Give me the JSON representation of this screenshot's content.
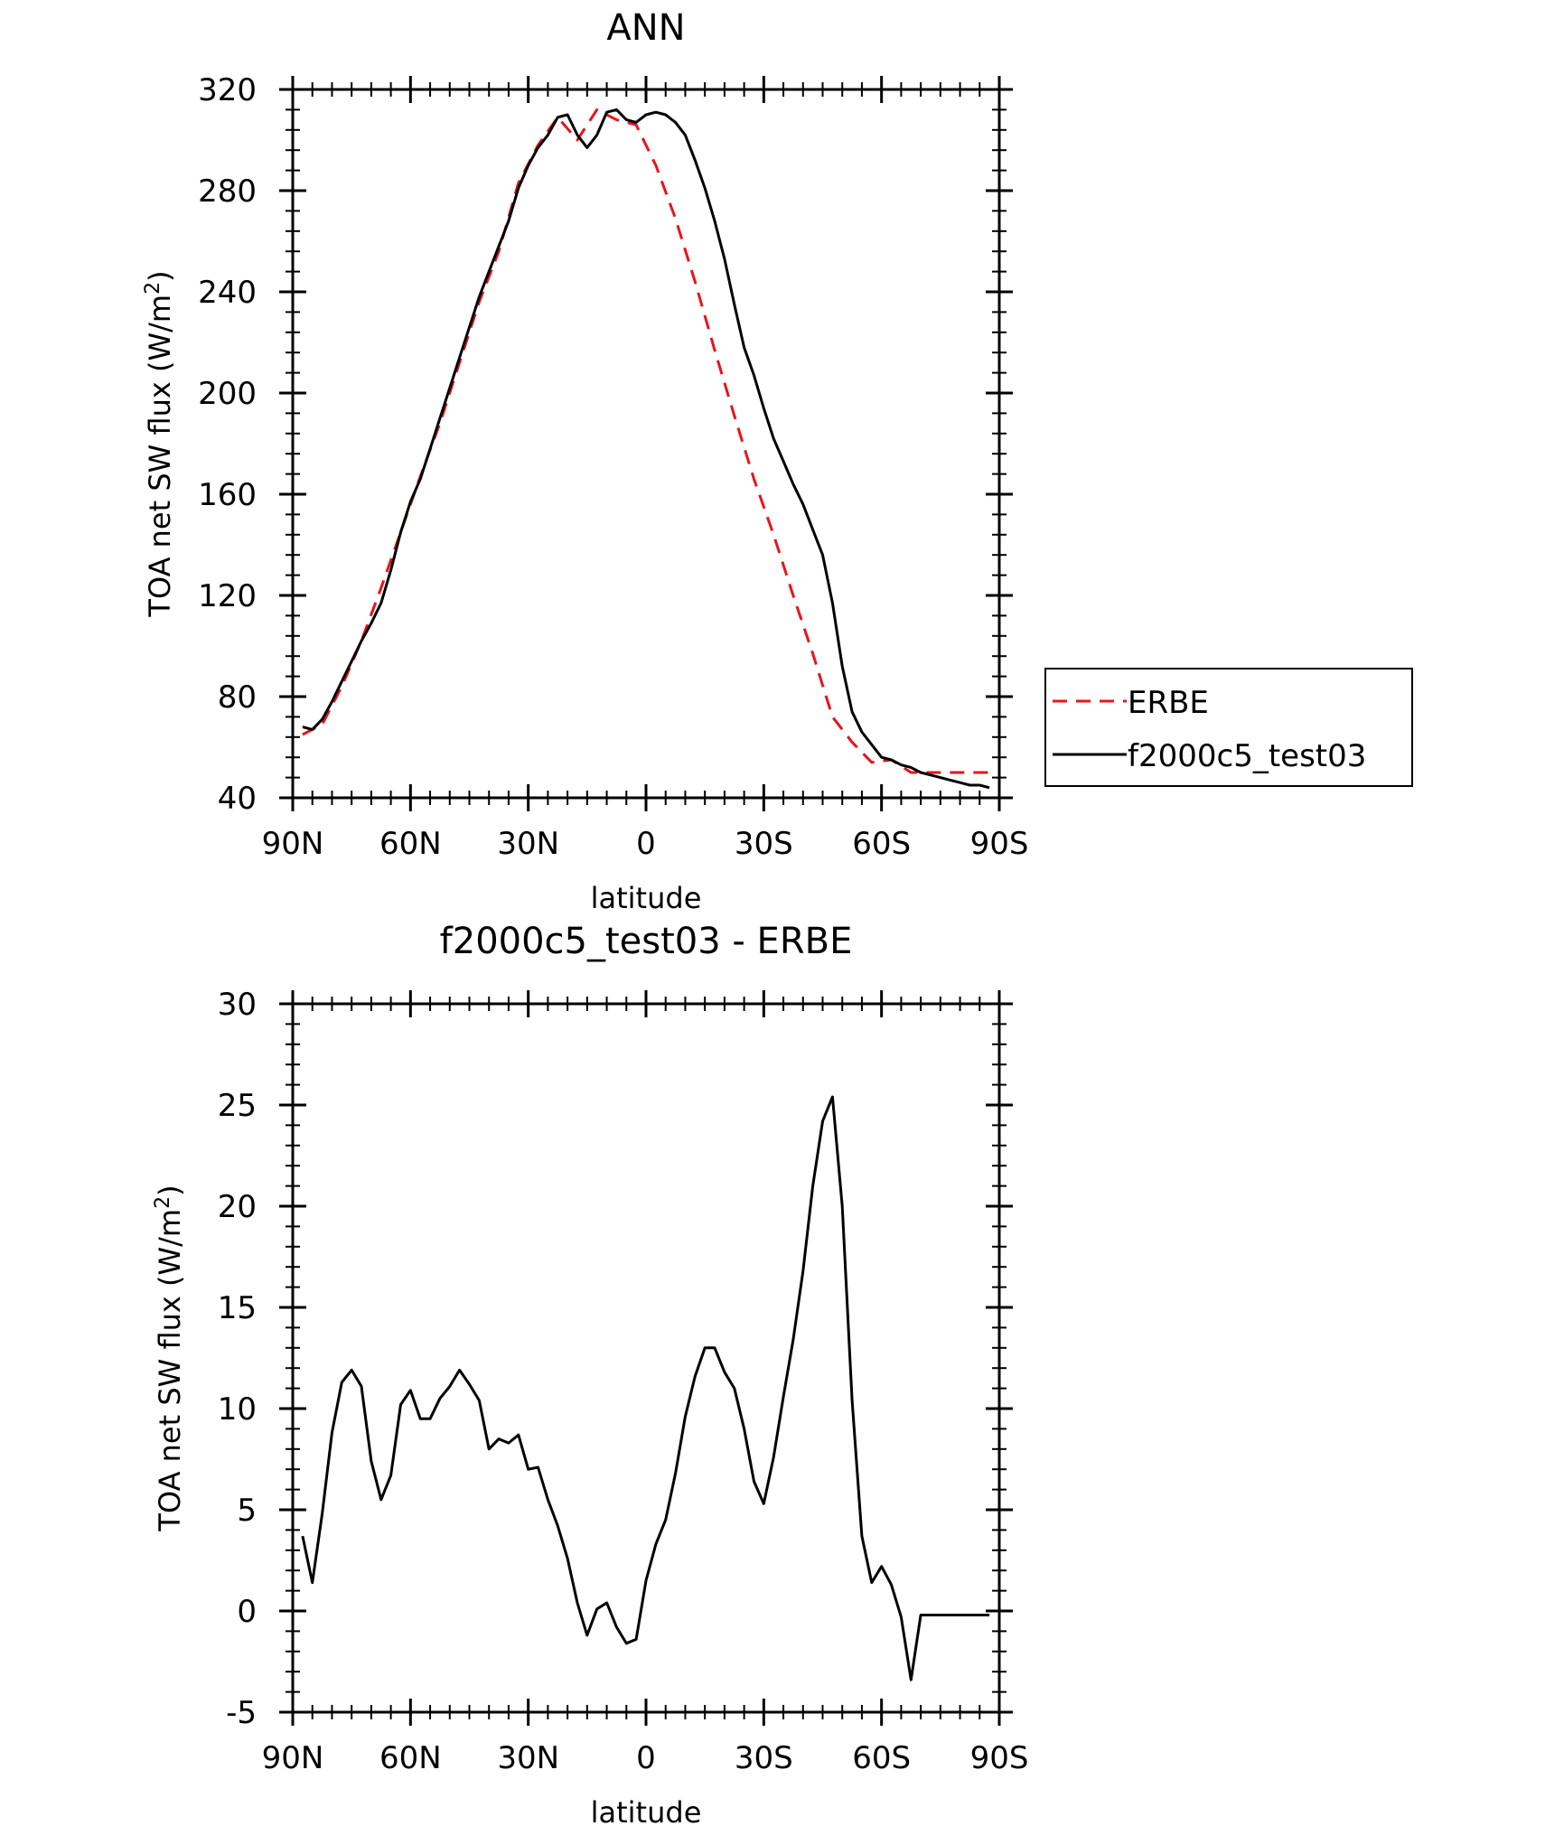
{
  "chart_data": [
    {
      "type": "line",
      "title": "ANN",
      "xlabel": "latitude",
      "ylabel": "TOA net SW flux (W/m²)",
      "ylabel_main": "TOA net SW flux (W/m",
      "ylabel_sup": "2",
      "ylabel_close": ")",
      "ylim": [
        40,
        320
      ],
      "xlim": [
        90,
        -90
      ],
      "yticks": [
        40,
        80,
        120,
        160,
        200,
        240,
        280,
        320
      ],
      "xticks": [
        {
          "value": 90,
          "label": "90N"
        },
        {
          "value": 60,
          "label": "60N"
        },
        {
          "value": 30,
          "label": "30N"
        },
        {
          "value": 0,
          "label": "0"
        },
        {
          "value": -30,
          "label": "30S"
        },
        {
          "value": -60,
          "label": "60S"
        },
        {
          "value": -90,
          "label": "90S"
        }
      ],
      "legend_position": "right",
      "series": [
        {
          "name": "ERBE",
          "color": "#e8141b",
          "dash": "dashed",
          "x": [
            87.5,
            82.5,
            77.5,
            72.5,
            67.5,
            62.5,
            57.5,
            52.5,
            47.5,
            42.5,
            37.5,
            32.5,
            27.5,
            22.5,
            17.5,
            12.5,
            7.5,
            2.5,
            -2.5,
            -7.5,
            -12.5,
            -17.5,
            -22.5,
            -27.5,
            -32.5,
            -37.5,
            -42.5,
            -47.5,
            -52.5,
            -57.5,
            -62.5,
            -67.5,
            -72.5,
            -77.5,
            -82.5,
            -87.5
          ],
          "y": [
            65,
            69,
            84,
            102,
            123,
            145,
            167,
            188,
            212,
            236,
            256,
            283,
            298,
            309,
            300,
            312,
            308,
            306,
            290,
            269,
            244,
            217,
            191,
            166,
            144,
            120,
            97,
            72,
            62,
            54,
            55,
            50,
            50,
            50,
            50,
            50
          ]
        },
        {
          "name": "f2000c5_test03",
          "color": "#000000",
          "dash": "solid",
          "x": [
            87.5,
            85,
            82.5,
            80,
            77.5,
            75,
            72.5,
            70,
            67.5,
            65,
            62.5,
            60,
            57.5,
            55,
            52.5,
            50,
            47.5,
            45,
            42.5,
            40,
            37.5,
            35,
            32.5,
            30,
            27.5,
            25,
            22.5,
            20,
            17.5,
            15,
            12.5,
            10,
            7.5,
            5,
            2.5,
            0,
            -2.5,
            -5,
            -7.5,
            -10,
            -12.5,
            -15,
            -17.5,
            -20,
            -22.5,
            -25,
            -27.5,
            -30,
            -32.5,
            -35,
            -37.5,
            -40,
            -42.5,
            -45,
            -47.5,
            -50,
            -52.5,
            -55,
            -57.5,
            -60,
            -62.5,
            -65,
            -67.5,
            -70,
            -72.5,
            -75,
            -77.5,
            -80,
            -82.5,
            -85,
            -87.5
          ],
          "y": [
            68,
            67,
            71,
            78,
            86,
            94,
            102,
            109,
            117,
            130,
            145,
            157,
            166,
            178,
            190,
            202,
            214,
            226,
            238,
            248,
            258,
            268,
            281,
            290,
            297,
            302,
            309,
            310,
            302,
            297,
            302,
            311,
            312,
            308,
            307,
            310,
            311,
            310,
            307,
            302,
            292,
            281,
            268,
            253,
            235,
            218,
            207,
            194,
            182,
            173,
            164,
            156,
            146,
            136,
            117,
            92,
            74,
            66,
            61,
            56,
            55,
            53,
            52,
            50,
            49,
            48,
            47,
            46,
            45,
            45,
            44
          ]
        }
      ]
    },
    {
      "type": "line",
      "title": "f2000c5_test03 - ERBE",
      "xlabel": "latitude",
      "ylabel": "TOA net SW flux (W/m²)",
      "ylabel_main": "TOA net SW flux (W/m",
      "ylabel_sup": "2",
      "ylabel_close": ")",
      "ylim": [
        -5,
        30
      ],
      "xlim": [
        90,
        -90
      ],
      "yticks": [
        -5,
        0,
        5,
        10,
        15,
        20,
        25,
        30
      ],
      "xticks": [
        {
          "value": 90,
          "label": "90N"
        },
        {
          "value": 60,
          "label": "60N"
        },
        {
          "value": 30,
          "label": "30N"
        },
        {
          "value": 0,
          "label": "0"
        },
        {
          "value": -30,
          "label": "30S"
        },
        {
          "value": -60,
          "label": "60S"
        },
        {
          "value": -90,
          "label": "90S"
        }
      ],
      "series": [
        {
          "color": "#000000",
          "dash": "solid",
          "x": [
            87.5,
            85,
            82.5,
            80,
            77.5,
            75,
            72.5,
            70,
            67.5,
            65,
            62.5,
            60,
            57.5,
            55,
            52.5,
            50,
            47.5,
            45,
            42.5,
            40,
            37.5,
            35,
            32.5,
            30,
            27.5,
            25,
            22.5,
            20,
            17.5,
            15,
            12.5,
            10,
            7.5,
            5,
            2.5,
            0,
            -2.5,
            -5,
            -7.5,
            -10,
            -12.5,
            -15,
            -17.5,
            -20,
            -22.5,
            -25,
            -27.5,
            -30,
            -32.5,
            -35,
            -37.5,
            -40,
            -42.5,
            -45,
            -47.5,
            -50,
            -52.5,
            -55,
            -57.5,
            -60,
            -62.5,
            -65,
            -67.5,
            -70,
            -72.5,
            -75,
            -77.5,
            -80,
            -82.5,
            -85,
            -87.5
          ],
          "y": [
            3.7,
            1.4,
            4.8,
            8.8,
            11.3,
            11.9,
            11.1,
            7.4,
            5.5,
            6.7,
            10.2,
            10.9,
            9.5,
            9.5,
            10.5,
            11.1,
            11.9,
            11.2,
            10.4,
            8.0,
            8.5,
            8.3,
            8.7,
            7.0,
            7.1,
            5.5,
            4.2,
            2.6,
            0.4,
            -1.2,
            0.1,
            0.4,
            -0.8,
            -1.6,
            -1.4,
            1.5,
            3.3,
            4.5,
            6.8,
            9.6,
            11.6,
            13.0,
            13.0,
            11.8,
            11.0,
            9.0,
            6.4,
            5.3,
            7.6,
            10.6,
            13.4,
            16.8,
            21.0,
            24.2,
            25.4,
            20.0,
            10.4,
            3.7,
            1.4,
            2.2,
            1.3,
            -0.3,
            -3.4,
            -0.2,
            -0.2,
            -0.2,
            -0.2,
            -0.2,
            -0.2,
            -0.2,
            -0.2
          ]
        }
      ]
    }
  ]
}
